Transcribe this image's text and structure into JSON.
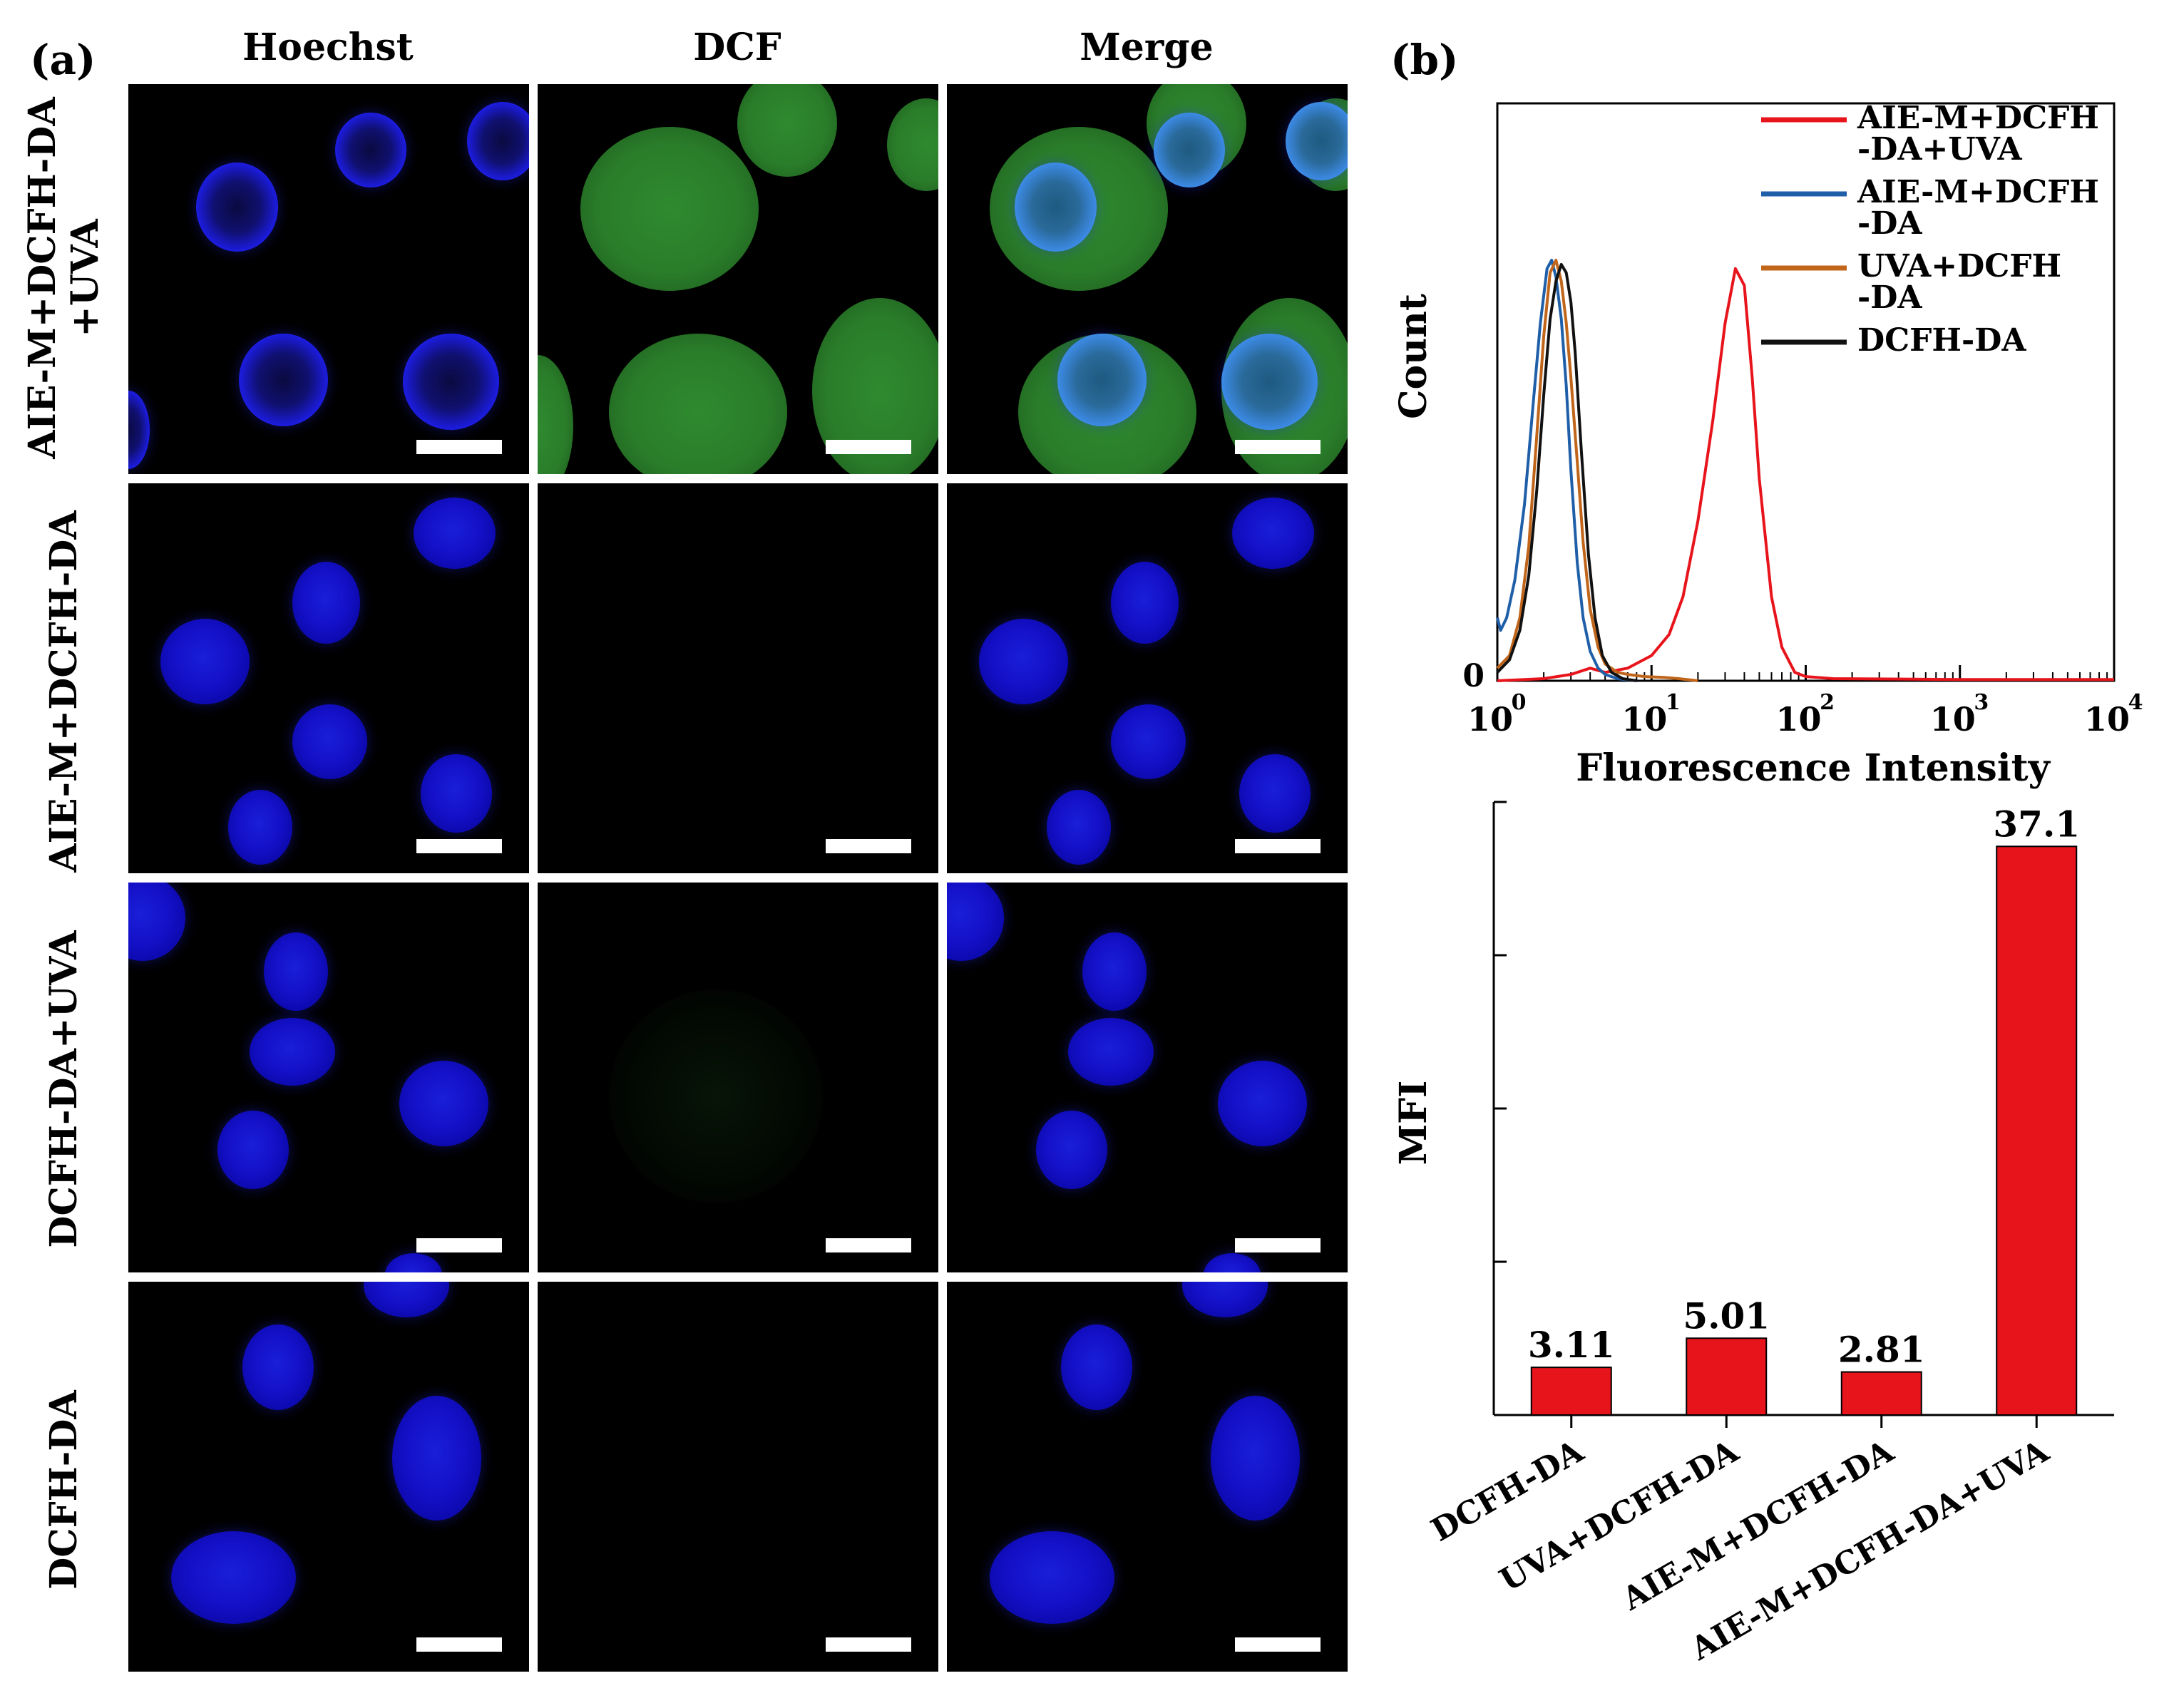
{
  "panel_a": {
    "label": "(a)",
    "columns": [
      "Hoechst",
      "DCF",
      "Merge"
    ],
    "rows": [
      {
        "line1": "AIE-M+DCFH-DA",
        "line2": "+UVA"
      },
      {
        "line1": "AIE-M+DCFH-DA",
        "line2": ""
      },
      {
        "line1": "DCFH-DA+UVA",
        "line2": ""
      },
      {
        "line1": "DCFH-DA",
        "line2": ""
      }
    ]
  },
  "panel_b": {
    "label": "(b)"
  },
  "chart_data": [
    {
      "type": "line",
      "xlabel": "Fluorescence  Intensity",
      "ylabel": "Count",
      "x_scale": "log",
      "xlim": [
        1,
        10000
      ],
      "x_ticks": [
        "10",
        "10",
        "10",
        "10",
        "10"
      ],
      "x_tick_exponents": [
        "0",
        "1",
        "2",
        "3",
        "4"
      ],
      "y_ticks": [
        "0"
      ],
      "legend": {
        "placement": "top-right",
        "entries": [
          {
            "lines": [
              "AIE-M+DCFH",
              "-DA+UVA"
            ],
            "color": "#e8141c"
          },
          {
            "lines": [
              "AIE-M+DCFH",
              "-DA"
            ],
            "color": "#1f5fa8"
          },
          {
            "lines": [
              "UVA+DCFH",
              "-DA"
            ],
            "color": "#c0651a"
          },
          {
            "lines": [
              "DCFH-DA"
            ],
            "color": "#111111"
          }
        ]
      },
      "series": [
        {
          "name": "AIE-M+DCFH-DA+UVA",
          "color": "#e8141c",
          "x": [
            1,
            2,
            3,
            4,
            5,
            7,
            10,
            13,
            16,
            20,
            25,
            30,
            35,
            40,
            45,
            50,
            60,
            70,
            85,
            100,
            150,
            1000,
            10000
          ],
          "y": [
            0,
            0.005,
            0.015,
            0.03,
            0.02,
            0.03,
            0.06,
            0.11,
            0.2,
            0.38,
            0.62,
            0.85,
            0.98,
            0.94,
            0.72,
            0.48,
            0.2,
            0.08,
            0.02,
            0.01,
            0.005,
            0.003,
            0.003
          ]
        },
        {
          "name": "AIE-M+DCFH-DA",
          "color": "#1f5fa8",
          "x": [
            1,
            1.05,
            1.15,
            1.3,
            1.5,
            1.7,
            1.9,
            2.1,
            2.25,
            2.4,
            2.6,
            2.8,
            3.0,
            3.3,
            3.6,
            4.0,
            4.5,
            5.0,
            6.0,
            8.0
          ],
          "y": [
            0.15,
            0.12,
            0.15,
            0.24,
            0.42,
            0.65,
            0.85,
            0.98,
            1.0,
            0.96,
            0.86,
            0.7,
            0.5,
            0.28,
            0.15,
            0.07,
            0.03,
            0.015,
            0.005,
            0.0
          ]
        },
        {
          "name": "UVA+DCFH-DA",
          "color": "#c0651a",
          "x": [
            1,
            1.2,
            1.4,
            1.6,
            1.8,
            2.0,
            2.2,
            2.4,
            2.6,
            2.8,
            3.0,
            3.3,
            3.6,
            4.0,
            4.5,
            5.0,
            6.0,
            7.0,
            9.0,
            12,
            15,
            20
          ],
          "y": [
            0.03,
            0.06,
            0.15,
            0.32,
            0.58,
            0.82,
            0.97,
            1.0,
            0.95,
            0.85,
            0.72,
            0.52,
            0.33,
            0.17,
            0.08,
            0.04,
            0.02,
            0.015,
            0.01,
            0.008,
            0.005,
            0.0
          ]
        },
        {
          "name": "DCFH-DA",
          "color": "#111111",
          "x": [
            1,
            1.2,
            1.4,
            1.6,
            1.8,
            2.0,
            2.2,
            2.4,
            2.6,
            2.8,
            3.0,
            3.2,
            3.5,
            3.9,
            4.3,
            4.8,
            5.5,
            6.5,
            8.0
          ],
          "y": [
            0.02,
            0.05,
            0.12,
            0.25,
            0.45,
            0.68,
            0.86,
            0.95,
            0.99,
            0.97,
            0.9,
            0.78,
            0.55,
            0.3,
            0.15,
            0.06,
            0.02,
            0.005,
            0.0
          ]
        }
      ]
    },
    {
      "type": "bar",
      "ylabel": "MFI",
      "categories": [
        "DCFH-DA",
        "UVA+DCFH-DA",
        "AIE-M+DCFH-DA",
        "AIE-M+DCFH-DA+UVA"
      ],
      "values": [
        3.11,
        5.01,
        2.81,
        37.1
      ],
      "value_labels": [
        "3.11",
        "5.01",
        "2.81",
        "37.1"
      ],
      "ylim": [
        0,
        40
      ],
      "bar_color": "#e8141c"
    }
  ]
}
